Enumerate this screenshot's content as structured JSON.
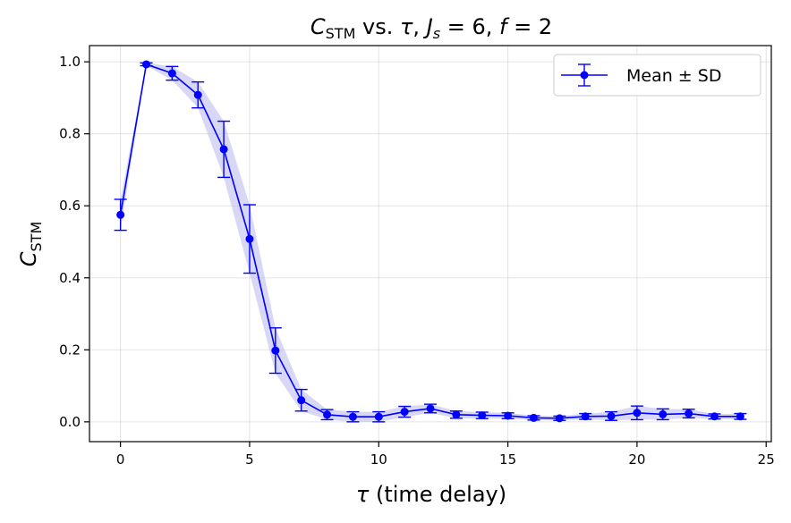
{
  "chart_data": {
    "type": "line",
    "title_parts": {
      "c": "C",
      "stm": "STM",
      "vs": " vs. ",
      "tau": "τ",
      "comma1": ", ",
      "j": "J",
      "s": "s",
      "eq1": " = 6, ",
      "f": "f",
      "eq2": " = 2"
    },
    "xlabel_parts": {
      "tau": "τ",
      "rest": " (time delay)"
    },
    "ylabel_parts": {
      "c": "C",
      "stm": "STM"
    },
    "x_ticks": [
      0,
      5,
      10,
      15,
      20,
      25
    ],
    "y_ticks": [
      "0.0",
      "0.2",
      "0.4",
      "0.6",
      "0.8",
      "1.0"
    ],
    "xlim": [
      -1.2,
      25.2
    ],
    "ylim": [
      -0.055,
      1.045
    ],
    "grid": true,
    "legend": {
      "placement": "top-right",
      "label": "Mean ± SD"
    },
    "series": [
      {
        "name": "Mean ± SD",
        "color": "#0000ff",
        "band_color": "#b8b8ee",
        "x": [
          0,
          1,
          2,
          3,
          4,
          5,
          6,
          7,
          8,
          9,
          10,
          11,
          12,
          13,
          14,
          15,
          16,
          17,
          18,
          19,
          20,
          21,
          22,
          23,
          24
        ],
        "y": [
          0.575,
          0.993,
          0.968,
          0.908,
          0.757,
          0.508,
          0.198,
          0.06,
          0.02,
          0.014,
          0.014,
          0.028,
          0.037,
          0.02,
          0.018,
          0.017,
          0.011,
          0.01,
          0.015,
          0.016,
          0.025,
          0.021,
          0.023,
          0.015,
          0.015
        ],
        "sd": [
          0.043,
          0.004,
          0.019,
          0.036,
          0.078,
          0.095,
          0.063,
          0.03,
          0.014,
          0.014,
          0.014,
          0.015,
          0.012,
          0.01,
          0.009,
          0.008,
          0.006,
          0.006,
          0.008,
          0.012,
          0.019,
          0.015,
          0.012,
          0.007,
          0.008
        ]
      }
    ]
  }
}
